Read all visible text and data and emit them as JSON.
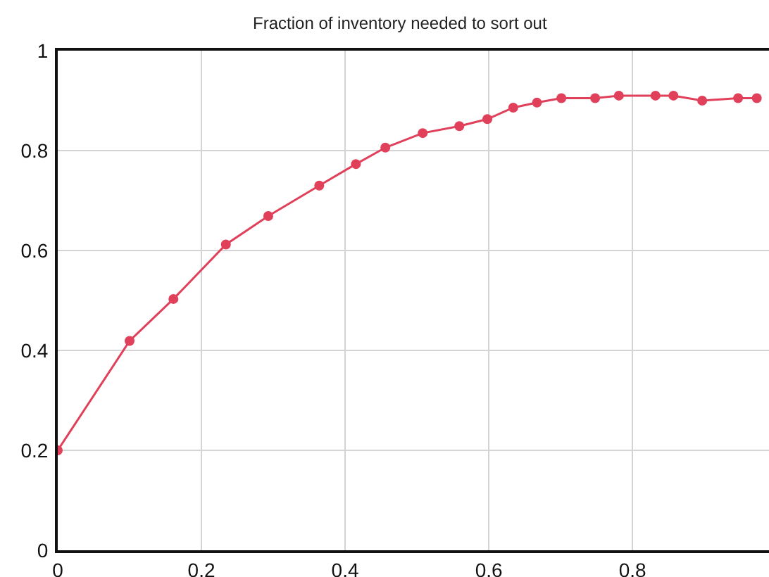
{
  "chart_data": {
    "type": "line",
    "title": "Fraction of inventory needed to sort out",
    "x": [
      0,
      0.1,
      0.161,
      0.234,
      0.293,
      0.364,
      0.415,
      0.456,
      0.508,
      0.559,
      0.598,
      0.634,
      0.667,
      0.701,
      0.748,
      0.781,
      0.832,
      0.857,
      0.897,
      0.947,
      0.973
    ],
    "series": [
      {
        "color": "#e0405a",
        "values": [
          0.2,
          0.419,
          0.503,
          0.612,
          0.669,
          0.73,
          0.773,
          0.806,
          0.835,
          0.849,
          0.863,
          0.886,
          0.896,
          0.905,
          0.905,
          0.91,
          0.91,
          0.91,
          0.9,
          0.905,
          0.905
        ]
      }
    ],
    "xlim": [
      0,
      0.99
    ],
    "xticks": [
      0,
      0.2,
      0.4,
      0.6,
      0.8
    ],
    "ylim": [
      0,
      1
    ],
    "yticks": [
      0,
      0.2,
      0.4,
      0.6,
      0.8,
      1
    ],
    "grid": true,
    "marker": "circle",
    "line_style": "solid",
    "legend": false
  }
}
